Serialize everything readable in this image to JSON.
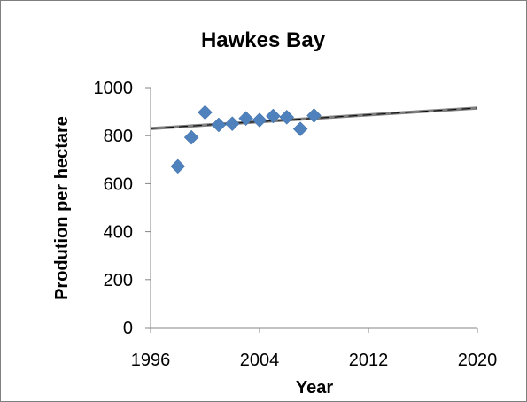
{
  "chart_data": {
    "type": "scatter",
    "title": "Hawkes Bay",
    "xlabel": "Year",
    "ylabel": "Prodution per hectare",
    "xlim": [
      1996,
      2020
    ],
    "ylim": [
      0,
      1000
    ],
    "xticks": [
      1996,
      2004,
      2012,
      2020
    ],
    "yticks": [
      0,
      200,
      400,
      600,
      800,
      1000
    ],
    "grid": false,
    "legend": "none",
    "colors": {
      "points": "#4f81bd",
      "trendline": "#7f7f7f",
      "trendline_dash": "#000000"
    },
    "series": [
      {
        "values": [
          {
            "x": 1998,
            "y": 672
          },
          {
            "x": 1999,
            "y": 793
          },
          {
            "x": 2000,
            "y": 897
          },
          {
            "x": 2001,
            "y": 845
          },
          {
            "x": 2002,
            "y": 850
          },
          {
            "x": 2003,
            "y": 872
          },
          {
            "x": 2004,
            "y": 865
          },
          {
            "x": 2005,
            "y": 882
          },
          {
            "x": 2006,
            "y": 877
          },
          {
            "x": 2007,
            "y": 828
          },
          {
            "x": 2008,
            "y": 884
          }
        ]
      }
    ],
    "trendline": {
      "type": "linear",
      "from": {
        "x": 1996,
        "y": 830
      },
      "to": {
        "x": 2020,
        "y": 915
      }
    }
  }
}
